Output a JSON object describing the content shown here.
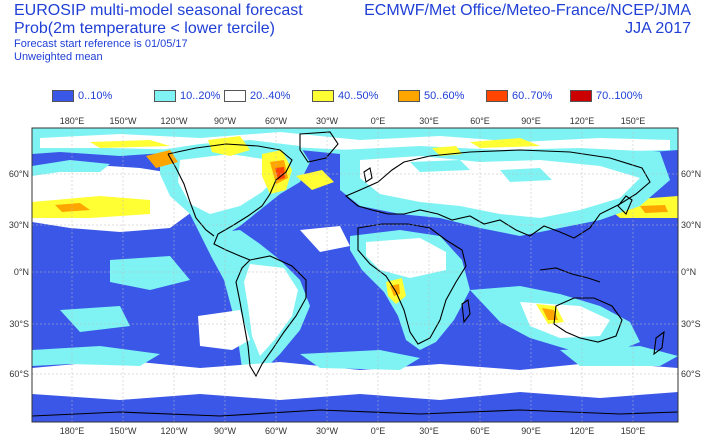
{
  "header": {
    "title": "EUROSIP multi-model seasonal forecast",
    "subtitle": "Prob(2m temperature < lower tercile)",
    "reference": "Forecast start reference is 01/05/17",
    "weighting": "Unweighted mean",
    "centres": "ECMWF/Met Office/Meteo-France/NCEP/JMA",
    "season": "JJA 2017"
  },
  "legend": [
    {
      "label": "0..10%",
      "color": "#3b57e8"
    },
    {
      "label": "10..20%",
      "color": "#7ff3f3"
    },
    {
      "label": "20..40%",
      "color": "#ffffff"
    },
    {
      "label": "40..50%",
      "color": "#ffff33"
    },
    {
      "label": "50..60%",
      "color": "#ffa500"
    },
    {
      "label": "60..70%",
      "color": "#ff4500"
    },
    {
      "label": "70..100%",
      "color": "#cc0000"
    }
  ],
  "map": {
    "lon_labels": [
      "180°E",
      "150°W",
      "120°W",
      "90°W",
      "60°W",
      "30°W",
      "0°E",
      "30°E",
      "60°E",
      "90°E",
      "120°E",
      "150°E"
    ],
    "lat_labels": [
      "60°N",
      "30°N",
      "0°N",
      "30°S",
      "60°S"
    ],
    "colors": {
      "ocean_low": "#3b57e8",
      "low": "#7ff3f3",
      "neutral": "#ffffff",
      "mid": "#ffff33",
      "high": "#ffa500",
      "very_high": "#ff4500",
      "extreme": "#cc0000",
      "coast": "#000000",
      "grid": "#bbbbbb"
    }
  }
}
